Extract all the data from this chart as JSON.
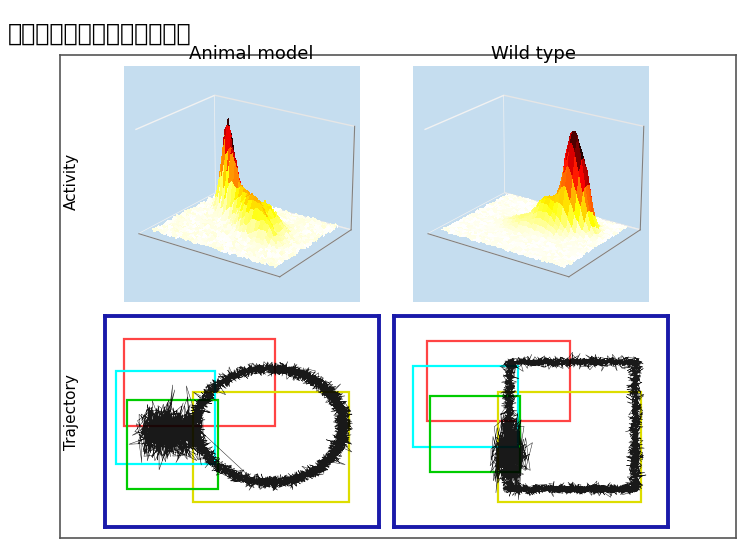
{
  "title": "モデル動物による実験解析例",
  "title_fontsize": 17,
  "col_labels": [
    "Animal model",
    "Wild type"
  ],
  "row_labels": [
    "Activity",
    "Trajectory"
  ],
  "row_label_fontsize": 11,
  "col_label_fontsize": 13,
  "outer_border_color": "#555555",
  "traj_border_color": "#1a1aaa",
  "bg_color": "#ffffff",
  "activity_bg": "#c5ddef",
  "traj_bg": "#ffffff",
  "col_label_style": "normal"
}
